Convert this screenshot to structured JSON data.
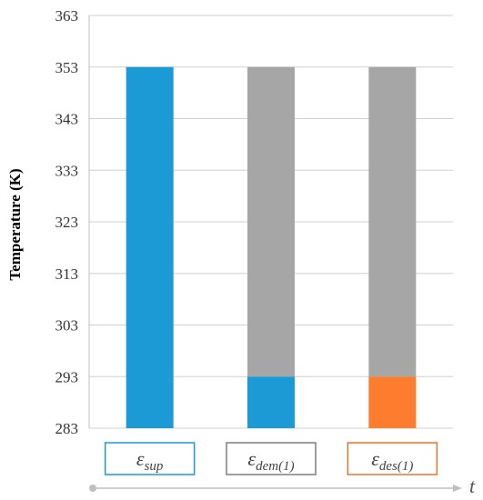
{
  "chart_data": {
    "type": "bar",
    "stacked": true,
    "ylabel": "Temperature (K)",
    "ylim": [
      283,
      363
    ],
    "yticks": [
      283,
      293,
      303,
      313,
      323,
      333,
      343,
      353,
      363
    ],
    "grid": true,
    "categories": [
      {
        "symbol": "ε",
        "subscript": "sup",
        "box_color": "#1b9ad6"
      },
      {
        "symbol": "ε",
        "subscript": "dem(1)",
        "box_color": "#7f7f7f"
      },
      {
        "symbol": "ε",
        "subscript": "des(1)",
        "box_color": "#e4762f"
      }
    ],
    "bars": [
      [
        {
          "from": 283,
          "to": 353,
          "color": "#1b9ad6"
        }
      ],
      [
        {
          "from": 283,
          "to": 293,
          "color": "#1b9ad6"
        },
        {
          "from": 293,
          "to": 353,
          "color": "#a6a6a6"
        }
      ],
      [
        {
          "from": 283,
          "to": 293,
          "color": "#fb7d2d"
        },
        {
          "from": 293,
          "to": 353,
          "color": "#a6a6a6"
        }
      ]
    ],
    "time_axis_label": "t"
  }
}
